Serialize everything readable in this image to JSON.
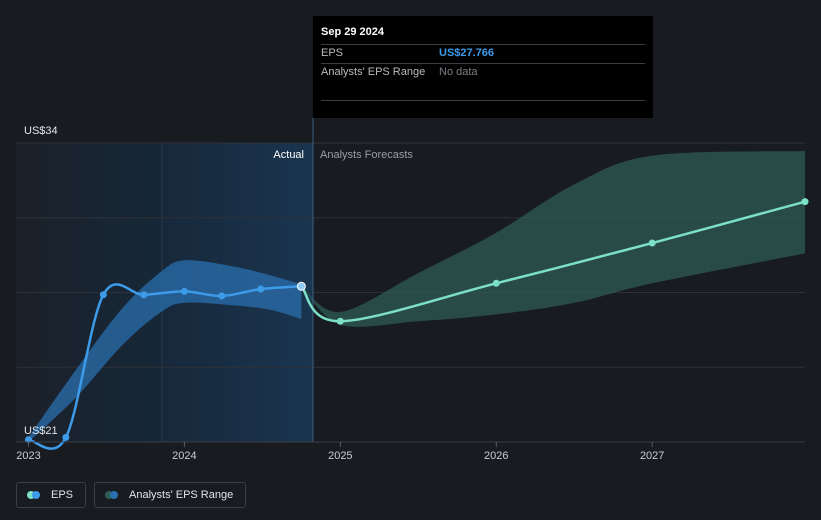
{
  "colors": {
    "background": "#181b20",
    "eps_actual": "#3d9be9",
    "eps_forecast": "#7ce0c8",
    "actual_band": "#2a6fae",
    "forecast_band": "#2f5e58",
    "grid": "#2e3137"
  },
  "tooltip": {
    "date": "Sep 29 2024",
    "rows": [
      {
        "key": "EPS",
        "value": "US$27.766"
      },
      {
        "key": "Analysts' EPS Range",
        "value": "No data"
      }
    ]
  },
  "labels": {
    "actual": "Actual",
    "forecasts": "Analysts Forecasts"
  },
  "legend": {
    "eps": "EPS",
    "range": "Analysts' EPS Range"
  },
  "chart_data": {
    "type": "line",
    "y_tick_labels": [
      "US$34",
      "US$21"
    ],
    "ylim": [
      21,
      34
    ],
    "xlim": [
      2022.92,
      2027.98
    ],
    "x_tick_labels": [
      {
        "label": "2023",
        "x": 2023.0
      },
      {
        "label": "2024",
        "x": 2024.0
      },
      {
        "label": "2025",
        "x": 2025.0
      },
      {
        "label": "2026",
        "x": 2026.0
      },
      {
        "label": "2027",
        "x": 2027.0
      }
    ],
    "grid": true,
    "series": [
      {
        "name": "EPS",
        "kind": "actual",
        "points": [
          [
            2023.0,
            21.1
          ],
          [
            2023.24,
            21.2
          ],
          [
            2023.48,
            27.4
          ],
          [
            2023.74,
            27.4
          ],
          [
            2024.0,
            27.55
          ],
          [
            2024.24,
            27.35
          ],
          [
            2024.49,
            27.65
          ],
          [
            2024.75,
            27.77
          ]
        ]
      },
      {
        "name": "EPS",
        "kind": "forecast",
        "points": [
          [
            2024.75,
            27.77
          ],
          [
            2025.0,
            26.25
          ],
          [
            2026.0,
            27.9
          ],
          [
            2027.0,
            29.65
          ],
          [
            2027.98,
            31.45
          ]
        ]
      }
    ],
    "ranges": [
      {
        "name": "Analysts' EPS Range",
        "kind": "actual",
        "upper": [
          [
            2023.0,
            21.2
          ],
          [
            2023.3,
            24.1
          ],
          [
            2023.6,
            26.8
          ],
          [
            2023.85,
            28.4
          ],
          [
            2024.0,
            28.9
          ],
          [
            2024.3,
            28.65
          ],
          [
            2024.55,
            28.25
          ],
          [
            2024.75,
            27.85
          ]
        ],
        "lower": [
          [
            2023.0,
            21.0
          ],
          [
            2023.3,
            22.9
          ],
          [
            2023.6,
            25.2
          ],
          [
            2023.85,
            26.65
          ],
          [
            2024.0,
            27.05
          ],
          [
            2024.3,
            26.95
          ],
          [
            2024.55,
            26.75
          ],
          [
            2024.75,
            26.35
          ]
        ]
      },
      {
        "name": "Analysts' EPS Range",
        "kind": "forecast",
        "upper": [
          [
            2024.75,
            27.77
          ],
          [
            2025.0,
            26.65
          ],
          [
            2025.5,
            28.35
          ],
          [
            2026.0,
            30.1
          ],
          [
            2026.5,
            32.2
          ],
          [
            2027.0,
            33.45
          ],
          [
            2027.98,
            33.65
          ]
        ],
        "lower": [
          [
            2024.75,
            27.77
          ],
          [
            2025.0,
            26.1
          ],
          [
            2025.5,
            26.25
          ],
          [
            2026.0,
            26.55
          ],
          [
            2026.5,
            27.05
          ],
          [
            2027.0,
            27.9
          ],
          [
            2027.98,
            29.2
          ]
        ]
      }
    ],
    "actual_cutoff_x": 2024.75
  }
}
